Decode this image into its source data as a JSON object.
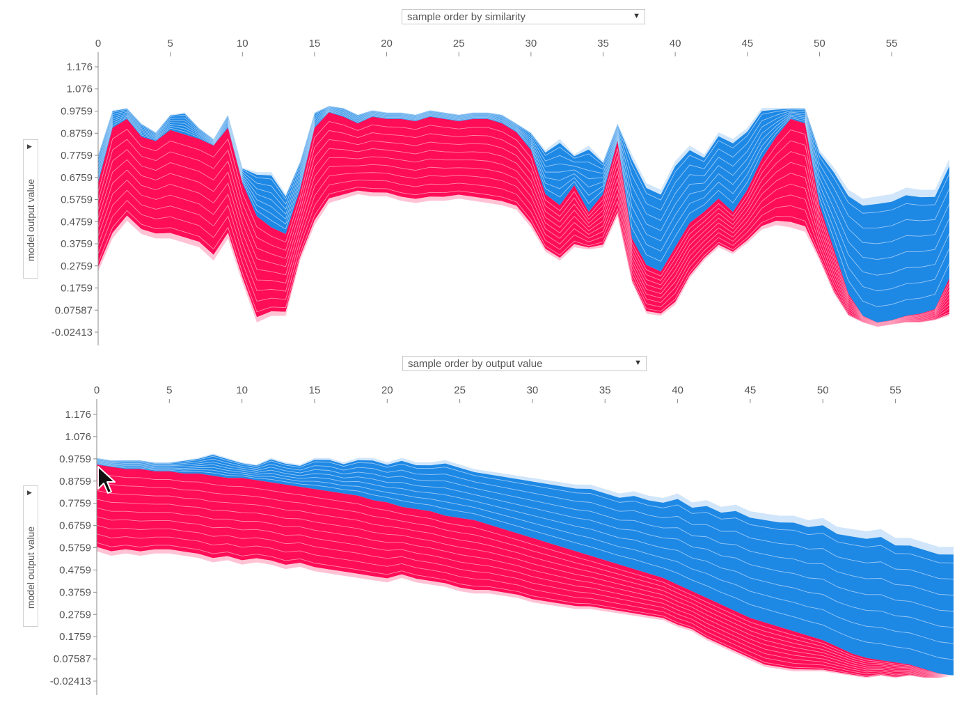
{
  "charts": [
    {
      "id": "top",
      "sort_label": "sample order by similarity",
      "ylabel": "model output value"
    },
    {
      "id": "bottom",
      "sort_label": "sample order by output value",
      "ylabel": "model output value"
    }
  ],
  "colors": {
    "positive": "#ff0d57",
    "negative": "#1e88e5",
    "positive_edge": "#ffc3d5",
    "negative_edge": "#d1e6fa",
    "axis": "#888888"
  },
  "icons": [
    "dropdown-arrow-icon",
    "mouse-cursor-icon"
  ],
  "chart_data": [
    {
      "type": "area",
      "xlim": [
        0,
        59
      ],
      "xticks": [
        0,
        5,
        10,
        15,
        20,
        25,
        30,
        35,
        40,
        45,
        50,
        55
      ],
      "ylim": [
        -0.0241,
        1.176
      ],
      "yticks": [
        "1.176",
        "1.076",
        "0.9759",
        "0.8759",
        "0.7759",
        "0.6759",
        "0.5759",
        "0.4759",
        "0.3759",
        "0.2759",
        "0.1759",
        "0.07587",
        "-0.02413"
      ],
      "ytick_values": [
        1.176,
        1.076,
        0.9759,
        0.8759,
        0.7759,
        0.6759,
        0.5759,
        0.4759,
        0.3759,
        0.2759,
        0.1759,
        0.07587,
        -0.02413
      ],
      "x": [
        0,
        1,
        2,
        3,
        4,
        5,
        6,
        7,
        8,
        9,
        10,
        11,
        12,
        13,
        14,
        15,
        16,
        17,
        18,
        19,
        20,
        21,
        22,
        23,
        24,
        25,
        26,
        27,
        28,
        29,
        30,
        31,
        32,
        33,
        34,
        35,
        36,
        37,
        38,
        39,
        40,
        41,
        42,
        43,
        44,
        45,
        46,
        47,
        48,
        49,
        50,
        51,
        52,
        53,
        54,
        55,
        56,
        57,
        58,
        59
      ],
      "top": [
        0.78,
        0.98,
        0.99,
        0.92,
        0.88,
        0.96,
        0.97,
        0.9,
        0.85,
        0.96,
        0.72,
        0.7,
        0.7,
        0.6,
        0.75,
        0.97,
        1.0,
        0.99,
        0.96,
        0.98,
        0.97,
        0.97,
        0.96,
        0.98,
        0.97,
        0.96,
        0.97,
        0.97,
        0.96,
        0.92,
        0.88,
        0.8,
        0.85,
        0.78,
        0.82,
        0.75,
        0.92,
        0.78,
        0.65,
        0.62,
        0.75,
        0.82,
        0.78,
        0.88,
        0.85,
        0.9,
        0.99,
        0.99,
        0.99,
        0.99,
        0.8,
        0.72,
        0.62,
        0.58,
        0.59,
        0.6,
        0.63,
        0.62,
        0.62,
        0.76
      ],
      "boundary": [
        0.65,
        0.9,
        0.94,
        0.86,
        0.84,
        0.89,
        0.87,
        0.85,
        0.82,
        0.9,
        0.65,
        0.5,
        0.45,
        0.42,
        0.62,
        0.9,
        0.97,
        0.95,
        0.92,
        0.95,
        0.94,
        0.94,
        0.93,
        0.95,
        0.94,
        0.93,
        0.94,
        0.94,
        0.92,
        0.88,
        0.8,
        0.6,
        0.55,
        0.64,
        0.52,
        0.6,
        0.84,
        0.4,
        0.28,
        0.25,
        0.36,
        0.47,
        0.52,
        0.58,
        0.52,
        0.62,
        0.76,
        0.86,
        0.94,
        0.92,
        0.55,
        0.35,
        0.15,
        0.05,
        0.02,
        0.03,
        0.05,
        0.06,
        0.08,
        0.22
      ],
      "bottom": [
        0.25,
        0.4,
        0.48,
        0.42,
        0.4,
        0.4,
        0.38,
        0.36,
        0.3,
        0.4,
        0.2,
        0.02,
        0.05,
        0.05,
        0.3,
        0.46,
        0.56,
        0.58,
        0.6,
        0.59,
        0.59,
        0.57,
        0.56,
        0.57,
        0.57,
        0.58,
        0.57,
        0.56,
        0.55,
        0.53,
        0.45,
        0.34,
        0.3,
        0.36,
        0.35,
        0.36,
        0.5,
        0.2,
        0.06,
        0.05,
        0.1,
        0.22,
        0.3,
        0.36,
        0.33,
        0.38,
        0.44,
        0.46,
        0.45,
        0.43,
        0.3,
        0.15,
        0.05,
        0.02,
        0.0,
        0.01,
        0.02,
        0.02,
        0.03,
        0.05
      ]
    },
    {
      "type": "area",
      "xlim": [
        0,
        59
      ],
      "xticks": [
        0,
        5,
        10,
        15,
        20,
        25,
        30,
        35,
        40,
        45,
        50,
        55
      ],
      "ylim": [
        -0.0241,
        1.176
      ],
      "yticks": [
        "1.176",
        "1.076",
        "0.9759",
        "0.8759",
        "0.7759",
        "0.6759",
        "0.5759",
        "0.4759",
        "0.3759",
        "0.2759",
        "0.1759",
        "0.07587",
        "-0.02413"
      ],
      "ytick_values": [
        1.176,
        1.076,
        0.9759,
        0.8759,
        0.7759,
        0.6759,
        0.5759,
        0.4759,
        0.3759,
        0.2759,
        0.1759,
        0.07587,
        -0.02413
      ],
      "x": [
        0,
        1,
        2,
        3,
        4,
        5,
        6,
        7,
        8,
        9,
        10,
        11,
        12,
        13,
        14,
        15,
        16,
        17,
        18,
        19,
        20,
        21,
        22,
        23,
        24,
        25,
        26,
        27,
        28,
        29,
        30,
        31,
        32,
        33,
        34,
        35,
        36,
        37,
        38,
        39,
        40,
        41,
        42,
        43,
        44,
        45,
        46,
        47,
        48,
        49,
        50,
        51,
        52,
        53,
        54,
        55,
        56,
        57,
        58,
        59
      ],
      "top": [
        0.98,
        0.97,
        0.97,
        0.97,
        0.96,
        0.96,
        0.97,
        0.98,
        1.0,
        0.98,
        0.96,
        0.95,
        0.98,
        0.96,
        0.95,
        0.98,
        0.98,
        0.96,
        0.98,
        0.98,
        0.96,
        0.98,
        0.96,
        0.96,
        0.97,
        0.95,
        0.93,
        0.92,
        0.91,
        0.9,
        0.89,
        0.88,
        0.87,
        0.86,
        0.86,
        0.84,
        0.82,
        0.83,
        0.81,
        0.8,
        0.82,
        0.78,
        0.79,
        0.76,
        0.77,
        0.74,
        0.73,
        0.72,
        0.72,
        0.7,
        0.71,
        0.67,
        0.66,
        0.65,
        0.66,
        0.62,
        0.62,
        0.6,
        0.58,
        0.58
      ],
      "boundary": [
        0.95,
        0.94,
        0.93,
        0.93,
        0.92,
        0.92,
        0.91,
        0.91,
        0.9,
        0.89,
        0.89,
        0.88,
        0.87,
        0.86,
        0.85,
        0.84,
        0.83,
        0.82,
        0.81,
        0.79,
        0.78,
        0.76,
        0.75,
        0.74,
        0.72,
        0.71,
        0.7,
        0.68,
        0.66,
        0.64,
        0.62,
        0.6,
        0.58,
        0.56,
        0.54,
        0.52,
        0.5,
        0.48,
        0.46,
        0.44,
        0.41,
        0.38,
        0.35,
        0.32,
        0.29,
        0.26,
        0.24,
        0.22,
        0.2,
        0.18,
        0.16,
        0.13,
        0.1,
        0.08,
        0.07,
        0.06,
        0.05,
        0.03,
        0.01,
        0.0
      ],
      "bottom": [
        0.56,
        0.54,
        0.55,
        0.54,
        0.55,
        0.55,
        0.54,
        0.53,
        0.51,
        0.52,
        0.5,
        0.51,
        0.5,
        0.48,
        0.49,
        0.47,
        0.46,
        0.45,
        0.44,
        0.43,
        0.42,
        0.44,
        0.42,
        0.41,
        0.4,
        0.38,
        0.37,
        0.37,
        0.36,
        0.35,
        0.33,
        0.32,
        0.31,
        0.3,
        0.3,
        0.29,
        0.28,
        0.27,
        0.26,
        0.25,
        0.22,
        0.2,
        0.16,
        0.13,
        0.1,
        0.07,
        0.04,
        0.03,
        0.02,
        0.02,
        0.02,
        0.01,
        0.0,
        -0.01,
        0.0,
        -0.01,
        0.0,
        -0.01,
        -0.01,
        0.0
      ]
    }
  ]
}
